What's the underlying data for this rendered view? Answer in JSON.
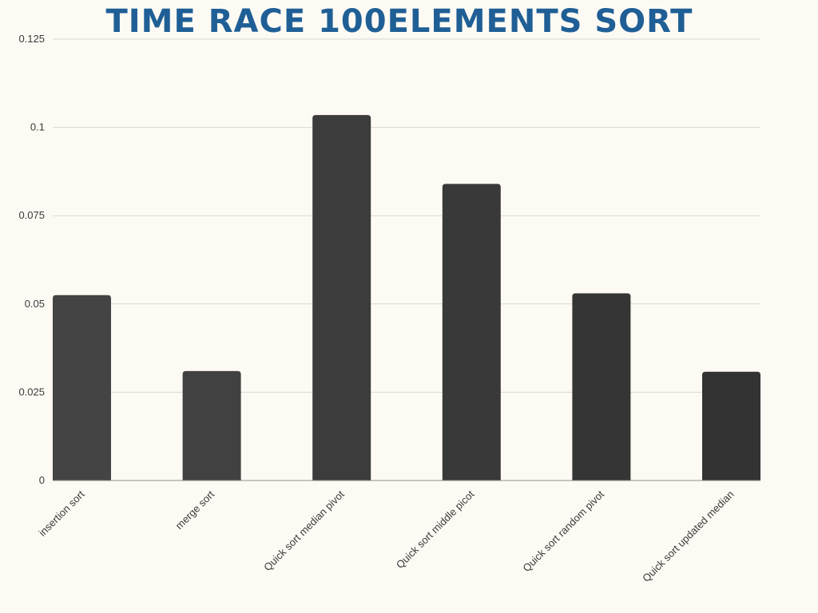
{
  "chart_data": {
    "type": "bar",
    "title": "TIME RACE 100ELEMENTS SORT",
    "xlabel": "",
    "ylabel": "",
    "categories": [
      "insertion sort",
      "merge sort",
      "Quick sort median pivot",
      "Quick sort middle picot",
      "Quick sort random pivot",
      "Quick sort updated median"
    ],
    "values": [
      0.0525,
      0.031,
      0.1035,
      0.084,
      0.053,
      0.0308
    ],
    "ylim": [
      0,
      0.125
    ],
    "yticks": [
      "0",
      "0.025",
      "0.05",
      "0.075",
      "0.1",
      "0.125"
    ],
    "grid": true,
    "colors": {
      "title": "#1f5f96",
      "bars": [
        "#444444",
        "#414141",
        "#3c3c3c",
        "#393939",
        "#353535",
        "#333333"
      ],
      "background": "#fdfaf4"
    }
  }
}
